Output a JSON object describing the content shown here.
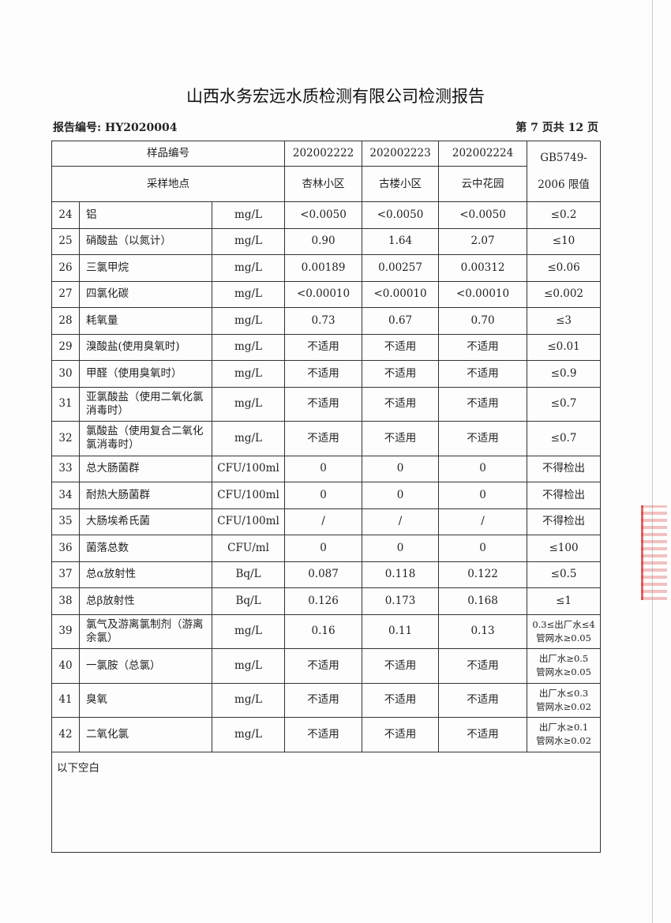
{
  "title": "山西水务宏远水质检测有限公司检测报告",
  "report_no": "报告编号: HY2020004",
  "page_info": "第 7 页共 12 页",
  "header": {
    "sample_no_label": "样品编号",
    "site_label": "采样地点",
    "samples": [
      "202002222",
      "202002223",
      "202002224"
    ],
    "sites": [
      "杏林小区",
      "古楼小区",
      "云中花园"
    ],
    "limit_label_1": "GB5749-",
    "limit_label_2": "2006 限值"
  },
  "rows": [
    {
      "no": "24",
      "item": "铝",
      "unit": "mg/L",
      "v": [
        "<0.0050",
        "<0.0050",
        "<0.0050"
      ],
      "limit": "≤0.2"
    },
    {
      "no": "25",
      "item": "硝酸盐（以氮计）",
      "unit": "mg/L",
      "v": [
        "0.90",
        "1.64",
        "2.07"
      ],
      "limit": "≤10"
    },
    {
      "no": "26",
      "item": "三氯甲烷",
      "unit": "mg/L",
      "v": [
        "0.00189",
        "0.00257",
        "0.00312"
      ],
      "limit": "≤0.06"
    },
    {
      "no": "27",
      "item": "四氯化碳",
      "unit": "mg/L",
      "v": [
        "<0.00010",
        "<0.00010",
        "<0.00010"
      ],
      "limit": "≤0.002"
    },
    {
      "no": "28",
      "item": "耗氧量",
      "unit": "mg/L",
      "v": [
        "0.73",
        "0.67",
        "0.70"
      ],
      "limit": "≤3"
    },
    {
      "no": "29",
      "item": "溴酸盐(使用臭氧时)",
      "unit": "mg/L",
      "v": [
        "不适用",
        "不适用",
        "不适用"
      ],
      "limit": "≤0.01"
    },
    {
      "no": "30",
      "item": "甲醛（使用臭氧时）",
      "unit": "mg/L",
      "v": [
        "不适用",
        "不适用",
        "不适用"
      ],
      "limit": "≤0.9"
    },
    {
      "no": "31",
      "item": "亚氯酸盐（使用二氧化氯消毒时）",
      "unit": "mg/L",
      "v": [
        "不适用",
        "不适用",
        "不适用"
      ],
      "limit": "≤0.7",
      "tall": true
    },
    {
      "no": "32",
      "item": "氯酸盐（使用复合二氧化氯消毒时）",
      "unit": "mg/L",
      "v": [
        "不适用",
        "不适用",
        "不适用"
      ],
      "limit": "≤0.7",
      "tall": true
    },
    {
      "no": "33",
      "item": "总大肠菌群",
      "unit": "CFU/100ml",
      "v": [
        "0",
        "0",
        "0"
      ],
      "limit": "不得检出"
    },
    {
      "no": "34",
      "item": "耐热大肠菌群",
      "unit": "CFU/100ml",
      "v": [
        "0",
        "0",
        "0"
      ],
      "limit": "不得检出"
    },
    {
      "no": "35",
      "item": "大肠埃希氏菌",
      "unit": "CFU/100ml",
      "v": [
        "/",
        "/",
        "/"
      ],
      "limit": "不得检出"
    },
    {
      "no": "36",
      "item": "菌落总数",
      "unit": "CFU/ml",
      "v": [
        "0",
        "0",
        "0"
      ],
      "limit": "≤100"
    },
    {
      "no": "37",
      "item": "总α放射性",
      "unit": "Bq/L",
      "v": [
        "0.087",
        "0.118",
        "0.122"
      ],
      "limit": "≤0.5"
    },
    {
      "no": "38",
      "item": "总β放射性",
      "unit": "Bq/L",
      "v": [
        "0.126",
        "0.173",
        "0.168"
      ],
      "limit": "≤1"
    },
    {
      "no": "39",
      "item": "氯气及游离氯制剂（游离余氯）",
      "unit": "mg/L",
      "v": [
        "0.16",
        "0.11",
        "0.13"
      ],
      "limit": "0.3≤出厂水≤4 管网水≥0.05",
      "tall": true
    },
    {
      "no": "40",
      "item": "一氯胺（总氯）",
      "unit": "mg/L",
      "v": [
        "不适用",
        "不适用",
        "不适用"
      ],
      "limit": "出厂水≥0.5 管网水≥0.05",
      "tall": true
    },
    {
      "no": "41",
      "item": "臭氧",
      "unit": "mg/L",
      "v": [
        "不适用",
        "不适用",
        "不适用"
      ],
      "limit": "出厂水≤0.3 管网水≥0.02",
      "tall": true
    },
    {
      "no": "42",
      "item": "二氧化氯",
      "unit": "mg/L",
      "v": [
        "不适用",
        "不适用",
        "不适用"
      ],
      "limit": "出厂水≥0.1 管网水≥0.02",
      "tall": true
    }
  ],
  "footer_note": "以下空白"
}
